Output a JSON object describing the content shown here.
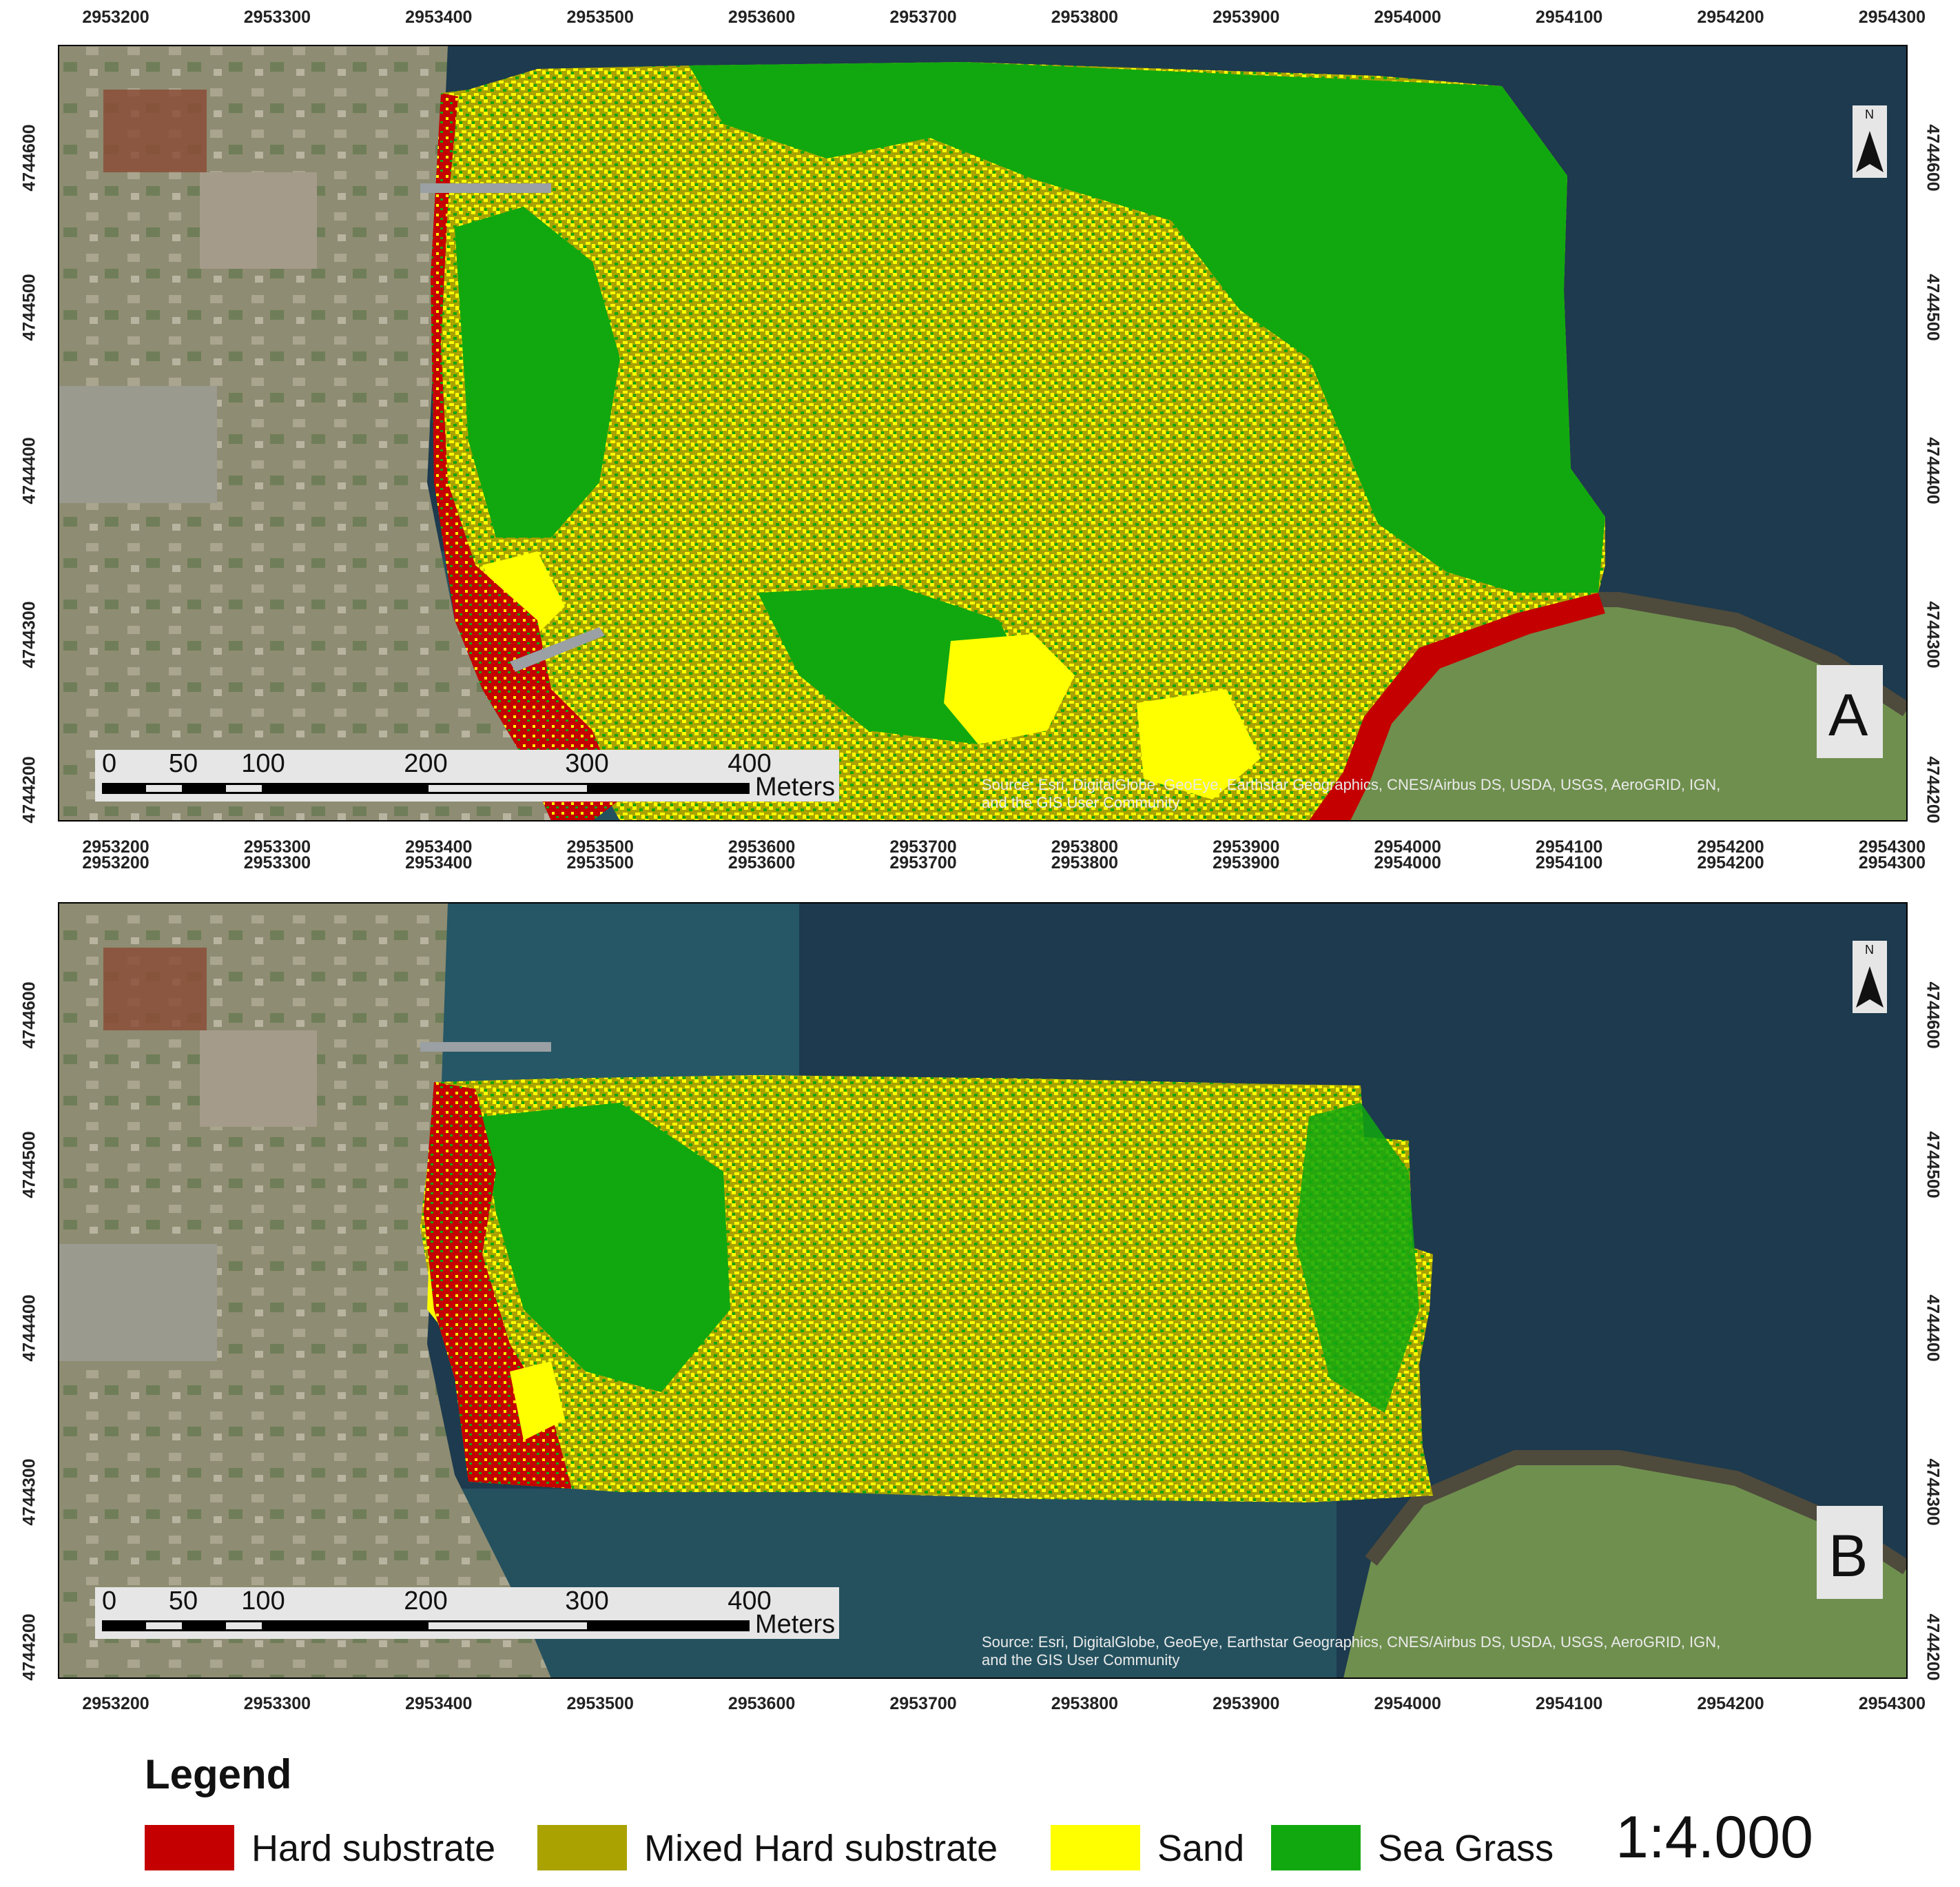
{
  "figure": {
    "panels": [
      {
        "id": "A",
        "letter": "A",
        "source_line1": "Source: Esri, DigitalGlobe, GeoEye, Earthstar Geographics, CNES/Airbus DS, USDA, USGS, AeroGRID, IGN,",
        "source_line2": "and the GIS User Community"
      },
      {
        "id": "B",
        "letter": "B",
        "source_line1": "Source: Esri, DigitalGlobe, GeoEye, Earthstar Geographics, CNES/Airbus DS, USDA, USGS, AeroGRID, IGN,",
        "source_line2": "and the GIS User Community"
      }
    ],
    "x_ticks": [
      "2953200",
      "2953300",
      "2953400",
      "2953500",
      "2953600",
      "2953700",
      "2953800",
      "2953900",
      "2954000",
      "2954100",
      "2954200",
      "2954300"
    ],
    "y_ticks": [
      "4744600",
      "4744500",
      "4744400",
      "4744300",
      "4744200"
    ],
    "scalebar": {
      "labels": [
        "0",
        "50",
        "100",
        "200",
        "300",
        "400"
      ],
      "unit": "Meters"
    },
    "north_label": "N",
    "legend": {
      "title": "Legend",
      "items": [
        {
          "label": "Hard substrate",
          "color": "#c40000"
        },
        {
          "label": "Mixed Hard substrate",
          "color": "#a9a200"
        },
        {
          "label": "Sand",
          "color": "#ffff00"
        },
        {
          "label": "Sea Grass",
          "color": "#11a80f"
        }
      ],
      "scale": "1:4.000"
    },
    "colors": {
      "water": "#1d3a4e",
      "water_shallow": "#2e6a74",
      "land": "#8a8a6c",
      "grass_field": "#6f8f4e"
    }
  }
}
